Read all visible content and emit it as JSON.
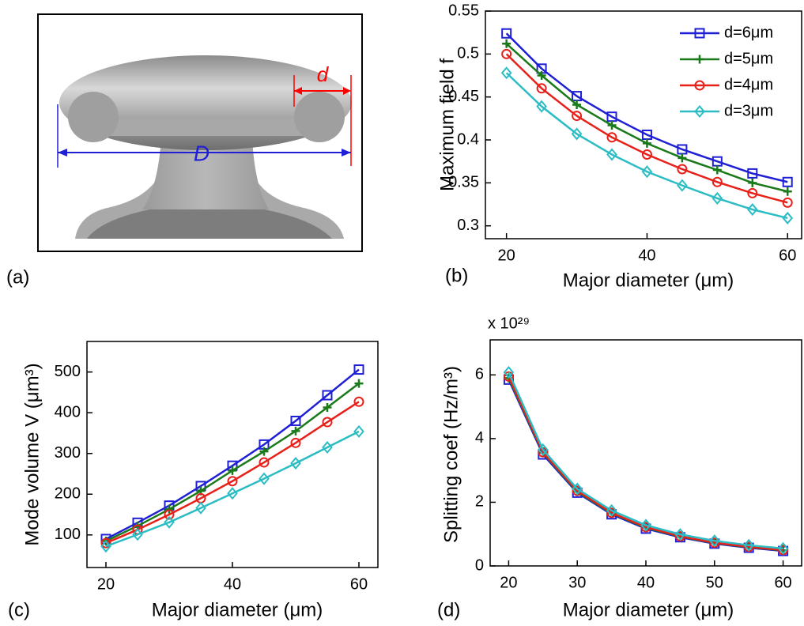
{
  "diagram": {
    "panel_label": "(a)",
    "labels": [
      "d",
      "D"
    ]
  },
  "chart_data": [
    {
      "type": "line",
      "panel_label": "(b)",
      "xlabel": "Major diameter  (μm)",
      "ylabel": "Maximum field  f",
      "x": [
        20,
        25,
        30,
        35,
        40,
        45,
        50,
        55,
        60
      ],
      "xlim": [
        17,
        62
      ],
      "xticks": [
        20,
        40,
        60
      ],
      "ylim": [
        0.285,
        0.55
      ],
      "yticks": [
        0.3,
        0.35,
        0.4,
        0.45,
        0.5,
        0.55
      ],
      "legend": "upper right",
      "series": [
        {
          "name": "d=6μm",
          "color": "#1f1fd6",
          "marker": "square",
          "values": [
            0.524,
            0.483,
            0.451,
            0.427,
            0.406,
            0.389,
            0.375,
            0.361,
            0.351
          ]
        },
        {
          "name": "d=5μm",
          "color": "#1a7a1a",
          "marker": "plus",
          "values": [
            0.512,
            0.475,
            0.441,
            0.417,
            0.396,
            0.379,
            0.365,
            0.35,
            0.34
          ]
        },
        {
          "name": "d=4μm",
          "color": "#e8201a",
          "marker": "circle",
          "values": [
            0.5,
            0.46,
            0.428,
            0.403,
            0.383,
            0.366,
            0.351,
            0.338,
            0.327
          ]
        },
        {
          "name": "d=3μm",
          "color": "#2bbcc4",
          "marker": "diamond",
          "values": [
            0.478,
            0.439,
            0.407,
            0.383,
            0.363,
            0.347,
            0.332,
            0.319,
            0.309
          ]
        }
      ]
    },
    {
      "type": "line",
      "panel_label": "(c)",
      "xlabel": "Major diameter  (μm)",
      "ylabel": "Mode volume  V  (μm³)",
      "x": [
        20,
        25,
        30,
        35,
        40,
        45,
        50,
        55,
        60
      ],
      "xlim": [
        17,
        63
      ],
      "xticks": [
        20,
        40,
        60
      ],
      "ylim": [
        20,
        575
      ],
      "yticks": [
        100,
        200,
        300,
        400,
        500
      ],
      "series": [
        {
          "color": "#1f1fd6",
          "marker": "square",
          "values": [
            90,
            130,
            172,
            220,
            270,
            322,
            380,
            443,
            506
          ]
        },
        {
          "color": "#1a7a1a",
          "marker": "plus",
          "values": [
            85,
            122,
            163,
            208,
            258,
            305,
            355,
            413,
            472
          ]
        },
        {
          "color": "#e8201a",
          "marker": "circle",
          "values": [
            80,
            113,
            150,
            190,
            232,
            278,
            326,
            377,
            427
          ]
        },
        {
          "color": "#2bbcc4",
          "marker": "diamond",
          "values": [
            72,
            101,
            131,
            166,
            202,
            238,
            276,
            315,
            354
          ]
        }
      ]
    },
    {
      "type": "line",
      "panel_label": "(d)",
      "xlabel": "Major diameter  (μm)",
      "ylabel": "Splitting coef (Hz/m³)",
      "offset_text": "x 10²⁹",
      "x": [
        20,
        25,
        30,
        35,
        40,
        45,
        50,
        55,
        60
      ],
      "xlim": [
        17.3,
        62.7
      ],
      "xticks": [
        20,
        30,
        40,
        50,
        60
      ],
      "ylim": [
        0,
        7.1
      ],
      "yticks": [
        0,
        2,
        4,
        6
      ],
      "series": [
        {
          "color": "#1f1fd6",
          "marker": "square",
          "values": [
            5.85,
            3.5,
            2.3,
            1.62,
            1.17,
            0.9,
            0.7,
            0.57,
            0.47
          ]
        },
        {
          "color": "#1a7a1a",
          "marker": "plus",
          "values": [
            5.9,
            3.55,
            2.33,
            1.65,
            1.2,
            0.92,
            0.72,
            0.59,
            0.49
          ]
        },
        {
          "color": "#e8201a",
          "marker": "circle",
          "values": [
            5.95,
            3.57,
            2.36,
            1.67,
            1.22,
            0.93,
            0.73,
            0.6,
            0.5
          ]
        },
        {
          "color": "#2bbcc4",
          "marker": "diamond",
          "values": [
            6.08,
            3.65,
            2.42,
            1.74,
            1.28,
            0.99,
            0.79,
            0.65,
            0.55
          ]
        }
      ]
    }
  ]
}
